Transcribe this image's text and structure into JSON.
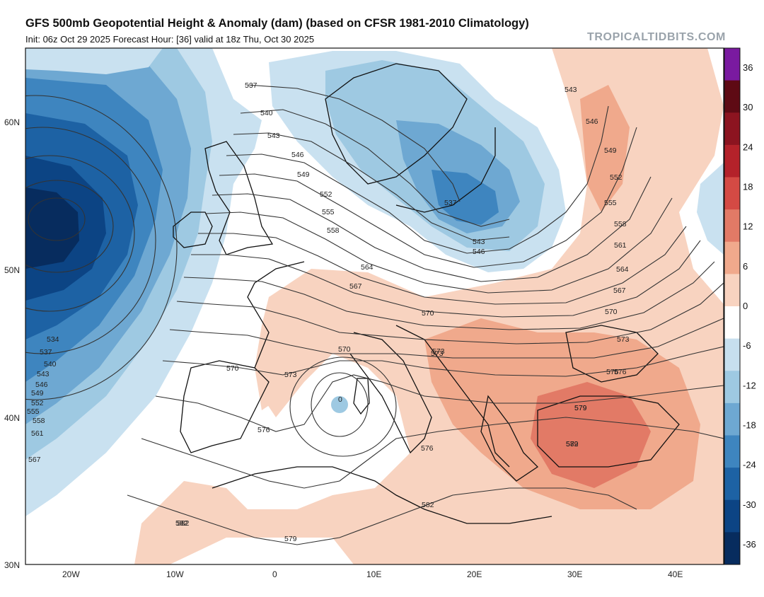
{
  "header": {
    "title": "GFS 500mb Geopotential Height & Anomaly (dam) (based on CFSR 1981-2010 Climatology)",
    "subtitle": "Init: 06z Oct 29 2025   Forecast Hour: [36]   valid at 18z Thu, Oct 30 2025",
    "brand": "TROPICALTIDBITS.COM"
  },
  "map": {
    "lat_labels": [
      "60N",
      "50N",
      "40N",
      "30N"
    ],
    "lon_labels": [
      "20W",
      "10W",
      "0",
      "10E",
      "20E",
      "30E",
      "40E"
    ],
    "contour_labels": [
      "537",
      "540",
      "543",
      "546",
      "549",
      "552",
      "555",
      "558",
      "561",
      "564",
      "567",
      "570",
      "573",
      "576",
      "579",
      "582",
      "534",
      "537",
      "540",
      "543",
      "546",
      "549",
      "552",
      "555",
      "558",
      "561",
      "567",
      "570",
      "573",
      "576",
      "579",
      "582",
      "582",
      "537",
      "543",
      "546",
      "543",
      "546",
      "549",
      "552",
      "555",
      "558",
      "561",
      "564",
      "567",
      "570",
      "573",
      "576",
      "579",
      "582",
      "570",
      "573",
      "576",
      "579",
      "0"
    ],
    "anomaly_features": [
      "deep negative anomaly west of Ireland",
      "negative anomaly over Scandinavia and Baltic",
      "positive anomaly over central Europe and the Balkans",
      "strong positive anomaly over Turkey and the Aegean",
      "positive anomaly over Russia",
      "small cut-off low near Sardinia"
    ]
  },
  "colorbar": {
    "labels": [
      "36",
      "30",
      "24",
      "18",
      "12",
      "6",
      "0",
      "-6",
      "-12",
      "-18",
      "-24",
      "-30",
      "-36"
    ],
    "colors": [
      "#7a1aa0",
      "#5e0a14",
      "#8c1420",
      "#b4222a",
      "#d44a44",
      "#e27a66",
      "#f0a98c",
      "#f8d3c0",
      "#ffffff",
      "#c7dfee",
      "#9ec9e2",
      "#6ea8d2",
      "#3e85bf",
      "#1d62a4",
      "#0c4484",
      "#072c5e"
    ]
  }
}
